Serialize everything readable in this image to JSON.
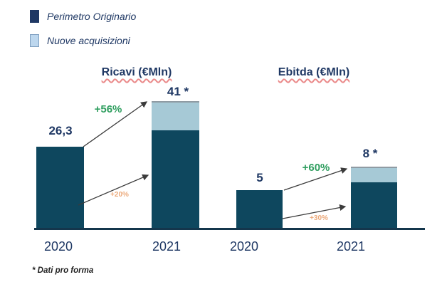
{
  "colors": {
    "navy_text": "#1F3864",
    "bar_dark": "#0E475E",
    "bar_light": "#A6C9D6",
    "legend_dark": "#1F3864",
    "legend_light": "#BDD7EE",
    "green": "#2F9E5F",
    "orange": "#ECAA7C",
    "underline_red": "#EA8A8A",
    "axis": "#14364C",
    "arrow": "#3B3B3B"
  },
  "legend": {
    "items": [
      {
        "label": "Perimetro Originario",
        "swatch_color": "#1F3864"
      },
      {
        "label": "Nuove acquisizioni",
        "swatch_color": "#BDD7EE"
      }
    ]
  },
  "footnote": "* Dati pro forma",
  "chart_data": [
    {
      "type": "bar",
      "stacked": true,
      "title": "Ricavi (€Mln)",
      "categories": [
        "2020",
        "2021"
      ],
      "series": [
        {
          "name": "Perimetro Originario",
          "values": [
            26.3,
            31.6
          ]
        },
        {
          "name": "Nuove acquisizioni",
          "values": [
            0,
            9.4
          ]
        }
      ],
      "totals": [
        26.3,
        41
      ],
      "total_labels": [
        "26,3",
        "41 *"
      ],
      "annotations": [
        {
          "text": "+56%",
          "color": "green"
        },
        {
          "text": "+20%",
          "color": "orange"
        }
      ],
      "grid": false,
      "value_axis": "hidden"
    },
    {
      "type": "bar",
      "stacked": true,
      "title": "Ebitda (€Mln)",
      "categories": [
        "2020",
        "2021"
      ],
      "series": [
        {
          "name": "Perimetro Originario",
          "values": [
            5,
            6
          ]
        },
        {
          "name": "Nuove acquisizioni",
          "values": [
            0,
            2
          ]
        }
      ],
      "totals": [
        5,
        8
      ],
      "total_labels": [
        "5",
        "8 *"
      ],
      "annotations": [
        {
          "text": "+60%",
          "color": "green"
        },
        {
          "text": "+30%",
          "color": "orange"
        }
      ],
      "grid": false,
      "value_axis": "hidden"
    }
  ]
}
